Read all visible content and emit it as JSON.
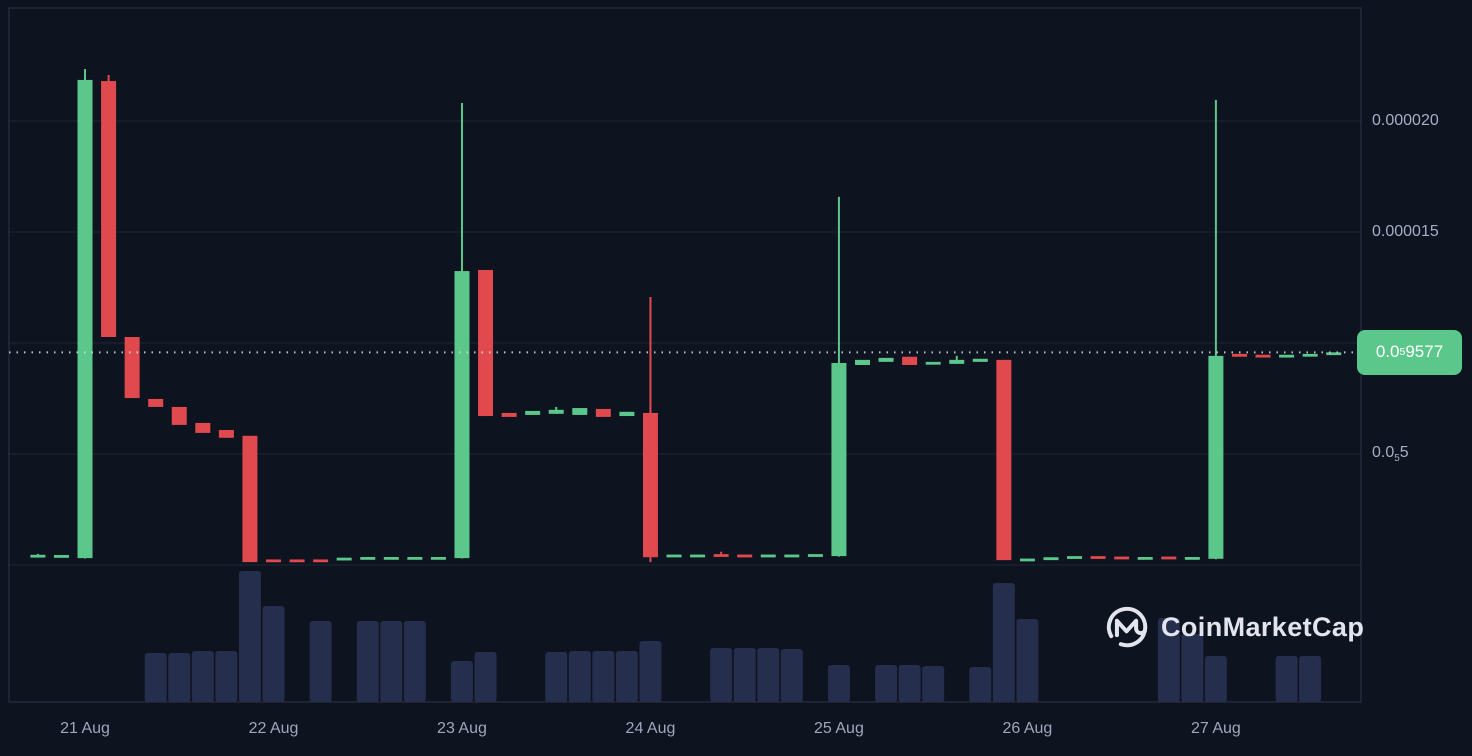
{
  "watermark": {
    "text": "CoinMarketCap"
  },
  "colors": {
    "background": "#0E1320",
    "up": "#5BC78A",
    "down": "#E0494D",
    "volume": "#262E4D",
    "grid": "rgba(164,174,204,0.12)",
    "frame": "rgba(164,174,204,0.22)",
    "axis_text": "#A6AEC3",
    "dotted_price_line": "#D9DEE8",
    "badge_bg": "#5BC78A",
    "badge_text": "#FFFFFF",
    "watermark": "#E2E4EE"
  },
  "chart_data": {
    "type": "candlestick",
    "note": "price values in units of 1e-6 USD; 8 candles per day (3h interval); volumes are relative units (no labeled volume axis)",
    "price_multiplier": 1e-06,
    "ylim": [
      0,
      22.9
    ],
    "grid_values": [
      20,
      15,
      10,
      5,
      0
    ],
    "candles_per_day": 8,
    "y_ticks": [
      {
        "value": 20,
        "pre": "0.000020",
        "sub": "",
        "post": ""
      },
      {
        "value": 15,
        "pre": "0.000015",
        "sub": "",
        "post": ""
      },
      {
        "value": 5,
        "pre": "0.0",
        "sub": "5",
        "post": "5"
      }
    ],
    "current_price": {
      "value": 9.577,
      "pre": "0.0",
      "sub": "5",
      "post": "9577"
    },
    "x_ticks": [
      {
        "slot": 2,
        "label": "21 Aug"
      },
      {
        "slot": 10,
        "label": "22 Aug"
      },
      {
        "slot": 18,
        "label": "23 Aug"
      },
      {
        "slot": 26,
        "label": "24 Aug"
      },
      {
        "slot": 34,
        "label": "25 Aug"
      },
      {
        "slot": 42,
        "label": "26 Aug"
      },
      {
        "slot": 50,
        "label": "27 Aug"
      }
    ],
    "candles": [
      [
        0.4,
        0.5,
        0.36,
        0.46
      ],
      [
        0.4,
        0.47,
        0.38,
        0.45
      ],
      [
        0.31,
        22.34,
        0.29,
        21.85
      ],
      [
        21.8,
        22.07,
        10.27,
        10.27
      ],
      [
        10.27,
        10.27,
        7.52,
        7.52
      ],
      [
        7.48,
        7.48,
        7.12,
        7.12
      ],
      [
        7.12,
        7.12,
        6.31,
        6.31
      ],
      [
        6.4,
        6.4,
        5.95,
        5.95
      ],
      [
        6.08,
        6.08,
        5.73,
        5.73
      ],
      [
        5.82,
        5.82,
        0.1,
        0.13
      ],
      [
        0.25,
        0.27,
        0.2,
        0.2
      ],
      [
        0.25,
        0.27,
        0.2,
        0.2
      ],
      [
        0.25,
        0.27,
        0.2,
        0.2
      ],
      [
        0.27,
        0.33,
        0.25,
        0.33
      ],
      [
        0.3,
        0.36,
        0.28,
        0.36
      ],
      [
        0.31,
        0.36,
        0.29,
        0.36
      ],
      [
        0.31,
        0.36,
        0.29,
        0.36
      ],
      [
        0.31,
        0.36,
        0.29,
        0.36
      ],
      [
        0.31,
        20.81,
        0.29,
        13.24
      ],
      [
        13.29,
        13.29,
        6.71,
        6.71
      ],
      [
        6.85,
        6.85,
        6.67,
        6.67
      ],
      [
        6.76,
        6.94,
        6.76,
        6.94
      ],
      [
        6.81,
        7.12,
        6.81,
        6.99
      ],
      [
        6.76,
        7.07,
        6.76,
        7.07
      ],
      [
        7.03,
        7.03,
        6.67,
        6.67
      ],
      [
        6.71,
        6.9,
        6.71,
        6.9
      ],
      [
        6.85,
        12.07,
        0.13,
        0.35
      ],
      [
        0.4,
        0.47,
        0.38,
        0.47
      ],
      [
        0.38,
        0.47,
        0.36,
        0.47
      ],
      [
        0.49,
        0.6,
        0.42,
        0.42
      ],
      [
        0.47,
        0.47,
        0.4,
        0.4
      ],
      [
        0.4,
        0.47,
        0.4,
        0.47
      ],
      [
        0.4,
        0.47,
        0.4,
        0.47
      ],
      [
        0.4,
        0.49,
        0.4,
        0.49
      ],
      [
        0.4,
        16.58,
        0.38,
        9.1
      ],
      [
        9.01,
        9.24,
        9.01,
        9.24
      ],
      [
        9.15,
        9.33,
        9.15,
        9.33
      ],
      [
        9.38,
        9.38,
        9.01,
        9.01
      ],
      [
        9.06,
        9.15,
        9.06,
        9.15
      ],
      [
        9.06,
        9.42,
        9.06,
        9.24
      ],
      [
        9.15,
        9.29,
        9.15,
        9.29
      ],
      [
        9.24,
        9.24,
        0.22,
        0.22
      ],
      [
        0.24,
        0.29,
        0.22,
        0.29
      ],
      [
        0.22,
        0.35,
        0.22,
        0.35
      ],
      [
        0.31,
        0.4,
        0.31,
        0.4
      ],
      [
        0.4,
        0.4,
        0.28,
        0.28
      ],
      [
        0.38,
        0.38,
        0.28,
        0.28
      ],
      [
        0.28,
        0.36,
        0.28,
        0.36
      ],
      [
        0.38,
        0.38,
        0.3,
        0.3
      ],
      [
        0.28,
        0.36,
        0.28,
        0.36
      ],
      [
        0.28,
        20.95,
        0.26,
        9.42
      ],
      [
        9.51,
        9.51,
        9.38,
        9.38
      ],
      [
        9.47,
        9.47,
        9.38,
        9.38
      ],
      [
        9.38,
        9.47,
        9.38,
        9.47
      ],
      [
        9.42,
        9.51,
        9.42,
        9.51
      ],
      [
        9.47,
        9.58,
        9.47,
        9.58
      ]
    ],
    "volumes": [
      0,
      0,
      0,
      0,
      0,
      49,
      49,
      51,
      51,
      131,
      96,
      0,
      81,
      0,
      81,
      81,
      81,
      0,
      41,
      50,
      0,
      0,
      50,
      51,
      51,
      51,
      61,
      0,
      0,
      54,
      54,
      54,
      53,
      0,
      37,
      0,
      37,
      37,
      36,
      0,
      35,
      119,
      83,
      0,
      0,
      0,
      0,
      0,
      84,
      68,
      46,
      0,
      0,
      46,
      46,
      0
    ]
  }
}
